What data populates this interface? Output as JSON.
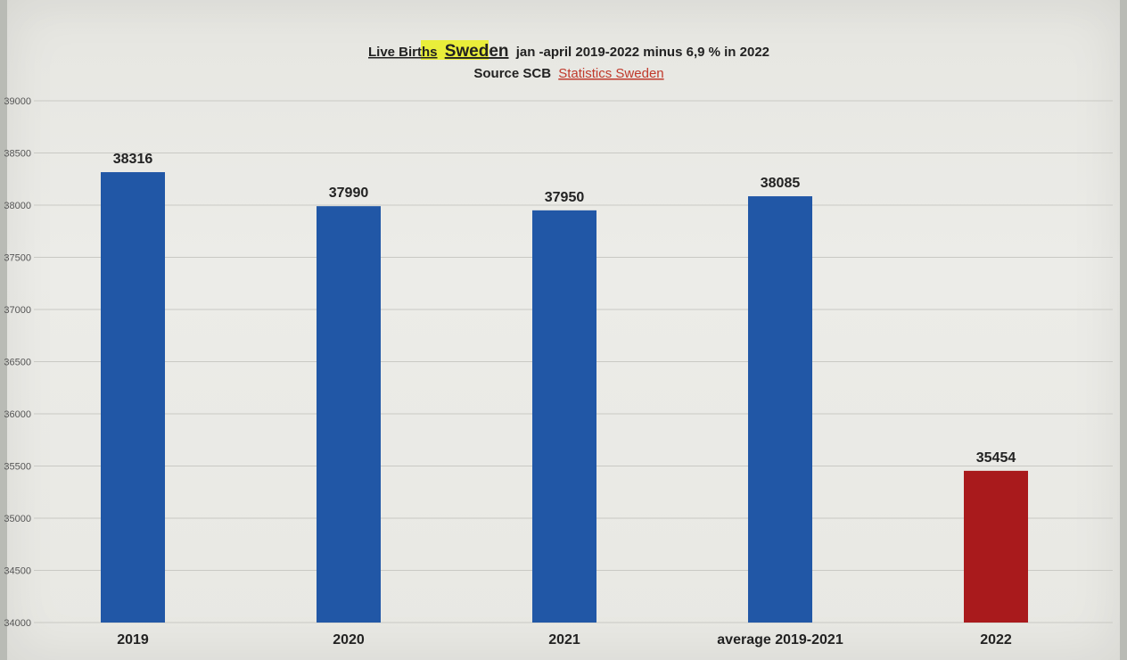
{
  "chart_data": {
    "type": "bar",
    "title_parts": [
      "Live Births",
      "Sweden",
      "jan -april 2019-2022 minus 6,9 % in 2022"
    ],
    "subtitle_parts": [
      "Source SCB",
      "Statistics Sweden"
    ],
    "categories": [
      "2019",
      "2020",
      "2021",
      "average 2019-2021",
      "2022"
    ],
    "values": [
      38316,
      37990,
      37950,
      38085,
      35454
    ],
    "colors": [
      "#2157a6",
      "#2157a6",
      "#2157a6",
      "#2157a6",
      "#a91a1c"
    ],
    "ylim": [
      34000,
      39000
    ],
    "yticks": [
      34000,
      34500,
      35000,
      35500,
      36000,
      36500,
      37000,
      37500,
      38000,
      38500,
      39000
    ],
    "ytick_labels": [
      "34000",
      "34500",
      "35000",
      "35500",
      "36000",
      "36500",
      "37000",
      "37500",
      "38000",
      "38500",
      "39000"
    ],
    "grid": true,
    "xlabel": "",
    "ylabel": ""
  }
}
